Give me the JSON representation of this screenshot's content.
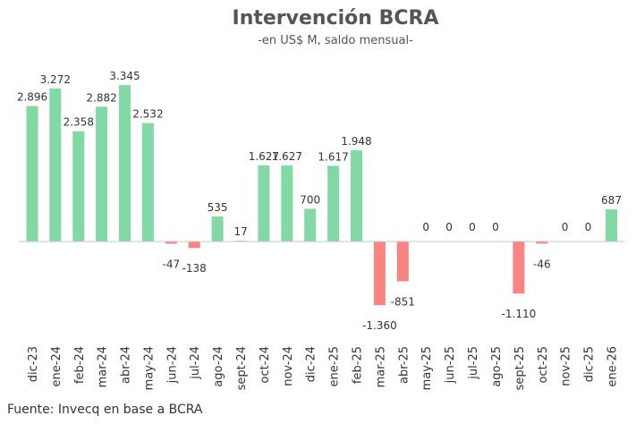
{
  "chart_data": {
    "type": "bar",
    "title": "Intervención BCRA",
    "subtitle": "-en US$ M, saldo mensual-",
    "xlabel": "",
    "ylabel": "",
    "categories": [
      "dic-23",
      "ene-24",
      "feb-24",
      "mar-24",
      "abr-24",
      "may-24",
      "jun-24",
      "jul-24",
      "ago-24",
      "sept-24",
      "oct-24",
      "nov-24",
      "dic-24",
      "ene-25",
      "feb-25",
      "mar-25",
      "abr-25",
      "may-25",
      "jun-25",
      "jul-25",
      "ago-25",
      "sept-25",
      "oct-25",
      "nov-25",
      "dic-25",
      "ene-26"
    ],
    "values": [
      2896,
      3272,
      2358,
      2882,
      3345,
      2532,
      -47,
      -138,
      535,
      17,
      1627,
      1627,
      700,
      1617,
      1948,
      -1360,
      -851,
      0,
      0,
      0,
      0,
      -1110,
      -46,
      0,
      0,
      687
    ],
    "labels": [
      "2.896",
      "3.272",
      "2.358",
      "2.882",
      "3.345",
      "2.532",
      "-47",
      "-138",
      "535",
      "17",
      "1.627",
      "1.627",
      "700",
      "1.617",
      "1.948",
      "-1.360",
      "-851",
      "0",
      "0",
      "0",
      "0",
      "-1.110",
      "-46",
      "0",
      "0",
      "687"
    ],
    "ylim": [
      -2000,
      3600
    ],
    "grid": false,
    "legend": "none",
    "colors": {
      "positive": "#82d9a5",
      "negative": "#f98482",
      "axis": "#c8c8c8",
      "text": "#333333",
      "title": "#555555"
    }
  },
  "source": "Fuente: Invecq en base a BCRA"
}
